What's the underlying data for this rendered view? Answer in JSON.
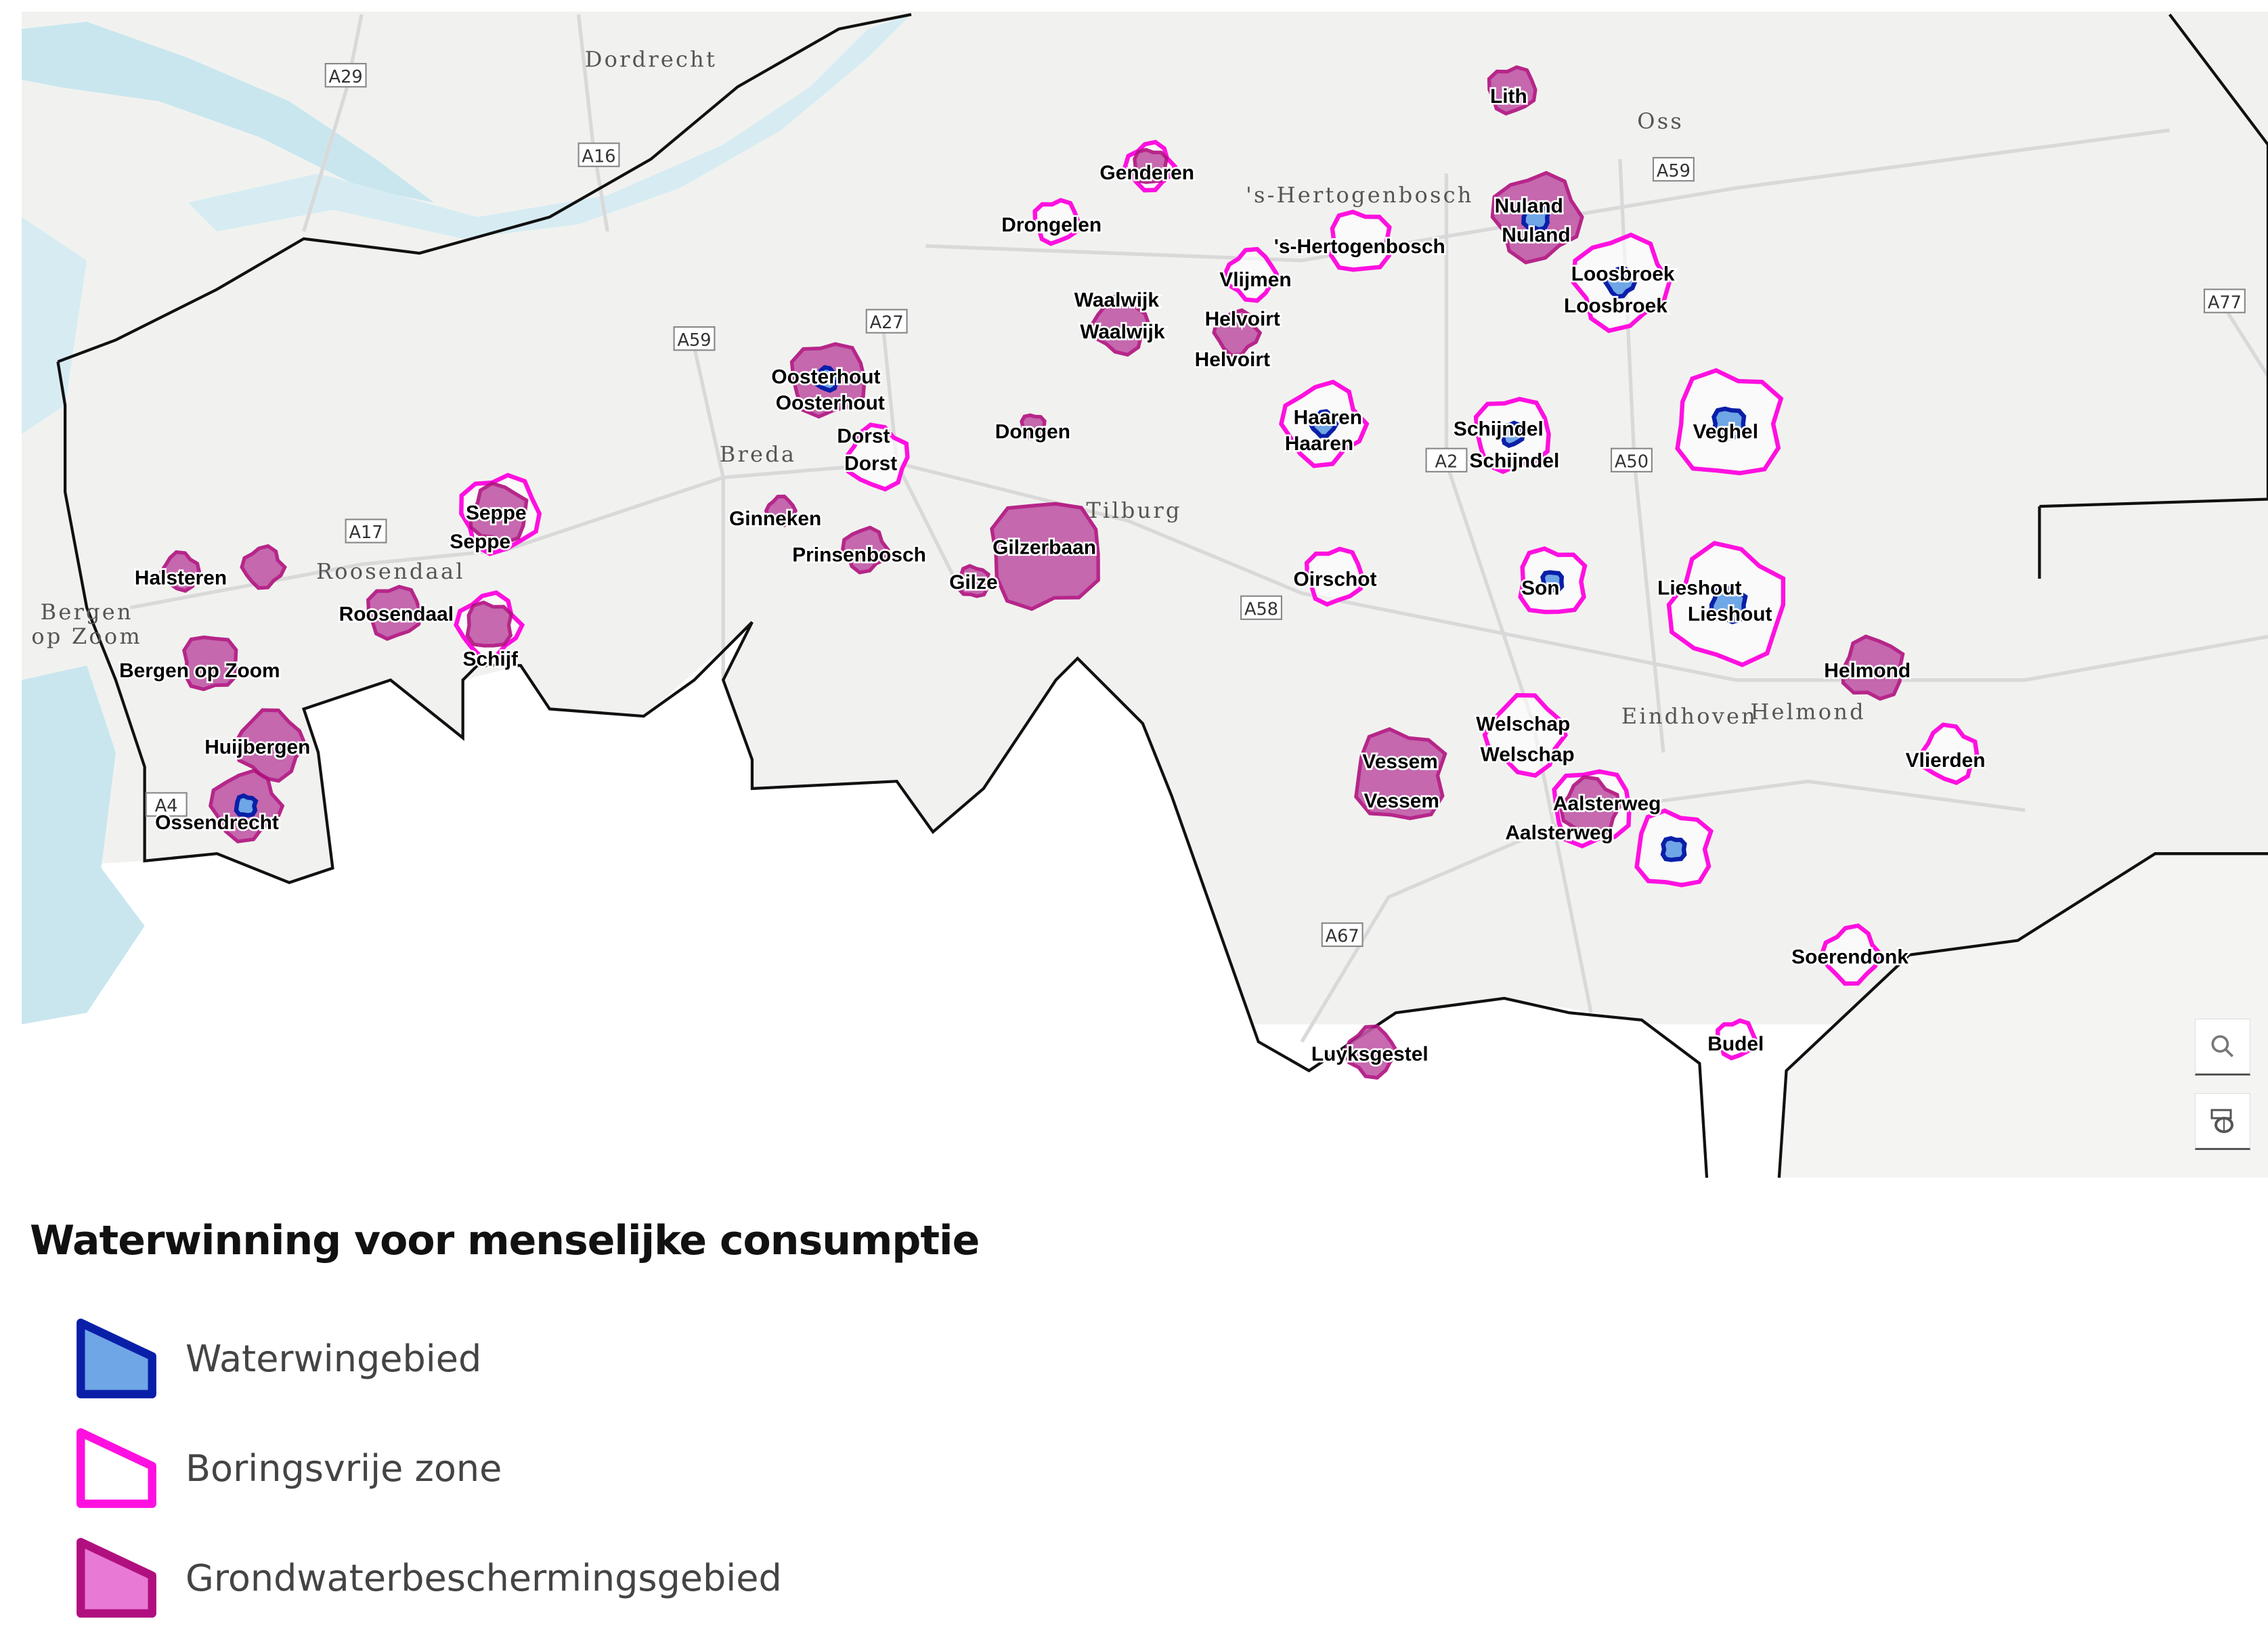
{
  "legend": {
    "title": "Waterwinning voor menselijke consumptie",
    "items": [
      {
        "label": "Waterwingebied",
        "stroke": "#0a1fa8",
        "fill": "#6fa6e6",
        "icon": "waterwingebied-swatch"
      },
      {
        "label": "Boringsvrije zone",
        "stroke": "#ff10e0",
        "fill": "#ffffff",
        "icon": "boringsvrije-zone-swatch"
      },
      {
        "label": "Grondwaterbeschermingsgebied",
        "stroke": "#b0107f",
        "fill": "#e87ad6",
        "icon": "grondwaterbeschermingsgebied-swatch"
      }
    ]
  },
  "colors": {
    "land": "#f1f2ef",
    "green": "#e4eed6",
    "water": "#c9e6ef",
    "border": "#111111",
    "road": "#d8d8d8"
  },
  "places": [
    "Dordrecht",
    "Oss",
    "Breda",
    "Tilburg",
    "Roosendaal",
    "Bergen",
    "op Zoom",
    "Helmond",
    "Eindhoven",
    "'s-Hertogenbosch"
  ],
  "roads": [
    "A29",
    "A16",
    "A59",
    "A27",
    "A17",
    "A4",
    "A2",
    "A50",
    "A59",
    "A77",
    "A58",
    "A67"
  ],
  "areas": [
    {
      "labels": [
        "Lith"
      ],
      "type": "gb"
    },
    {
      "labels": [
        "Genderen"
      ],
      "type": "gb+bvz"
    },
    {
      "labels": [
        "Drongelen"
      ],
      "type": "bvz"
    },
    {
      "labels": [
        "'s-Hertogenbosch"
      ],
      "type": "bvz"
    },
    {
      "labels": [
        "Nuland",
        "Nuland"
      ],
      "type": "gb+ww"
    },
    {
      "labels": [
        "Vlijmen"
      ],
      "type": "bvz"
    },
    {
      "labels": [
        "Loosbroek",
        "Loosbroek"
      ],
      "type": "bvz+ww"
    },
    {
      "labels": [
        "Waalwijk",
        "Waalwijk"
      ],
      "type": "gb"
    },
    {
      "labels": [
        "Helvoirt",
        "Helvoirt"
      ],
      "type": "gb"
    },
    {
      "labels": [
        "Oosterhout",
        "Oosterhout"
      ],
      "type": "gb+ww"
    },
    {
      "labels": [
        "Haaren",
        "Haaren"
      ],
      "type": "bvz+ww"
    },
    {
      "labels": [
        "Schijndel",
        "Schijndel"
      ],
      "type": "bvz+ww"
    },
    {
      "labels": [
        "Veghel"
      ],
      "type": "bvz+ww"
    },
    {
      "labels": [
        "Dorst",
        "Dorst"
      ],
      "type": "bvz"
    },
    {
      "labels": [
        "Dongen"
      ],
      "type": "gb"
    },
    {
      "labels": [
        "Seppe",
        "Seppe"
      ],
      "type": "gb+bvz"
    },
    {
      "labels": [
        "Ginneken"
      ],
      "type": "gb"
    },
    {
      "labels": [
        "Prinsenbosch"
      ],
      "type": "gb"
    },
    {
      "labels": [
        "Gilzerbaan"
      ],
      "type": "gb"
    },
    {
      "labels": [
        "Gilze"
      ],
      "type": "gb"
    },
    {
      "labels": [
        "Halsteren"
      ],
      "type": "gb"
    },
    {
      "labels": [],
      "type": "gb"
    },
    {
      "labels": [
        "Roosendaal"
      ],
      "type": "gb"
    },
    {
      "labels": [
        "Schijf"
      ],
      "type": "gb+bvz"
    },
    {
      "labels": [
        "Oirschot"
      ],
      "type": "bvz"
    },
    {
      "labels": [
        "Son"
      ],
      "type": "bvz+ww"
    },
    {
      "labels": [
        "Lieshout",
        "Lieshout"
      ],
      "type": "bvz+ww"
    },
    {
      "labels": [
        "Bergen op Zoom"
      ],
      "type": "gb"
    },
    {
      "labels": [
        "Helmond"
      ],
      "type": "gb"
    },
    {
      "labels": [
        "Huijbergen"
      ],
      "type": "gb"
    },
    {
      "labels": [
        "Ossendrecht"
      ],
      "type": "gb+ww"
    },
    {
      "labels": [
        "Welschap",
        "Welschap"
      ],
      "type": "bvz"
    },
    {
      "labels": [
        "Vessem",
        "Vessem"
      ],
      "type": "gb"
    },
    {
      "labels": [
        "Aalsterweg",
        "Aalsterweg"
      ],
      "type": "gb+bvz"
    },
    {
      "labels": [],
      "type": "bvz+ww"
    },
    {
      "labels": [
        "Vlierden"
      ],
      "type": "bvz"
    },
    {
      "labels": [
        "Soerendonk"
      ],
      "type": "bvz"
    },
    {
      "labels": [
        "Budel"
      ],
      "type": "bvz"
    },
    {
      "labels": [
        "Luyksgestel"
      ],
      "type": "gb"
    }
  ],
  "controls": [
    {
      "icon": "search-icon"
    },
    {
      "icon": "print-icon"
    }
  ]
}
